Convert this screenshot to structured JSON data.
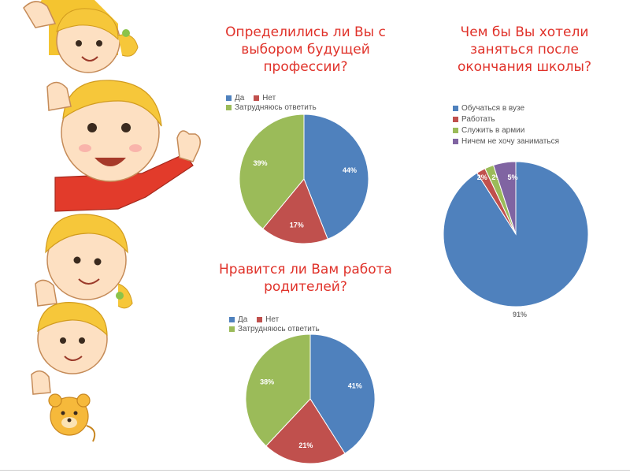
{
  "colors": {
    "blue": "#4f81bd",
    "red": "#c0504d",
    "green": "#9bbb59",
    "purple": "#8064a2",
    "title_red": "#e0322a"
  },
  "chart_data": [
    {
      "type": "pie",
      "title": "Определились ли Вы с выбором будущей профессии?",
      "legend_position": "top",
      "series": [
        {
          "name": "",
          "labels": [
            "Да",
            "Нет",
            "Затрудняюсь ответить"
          ],
          "values": [
            44,
            17,
            39
          ]
        }
      ],
      "data_labels": [
        "44%",
        "17%",
        "39%"
      ]
    },
    {
      "type": "pie",
      "title": "Чем бы Вы хотели заняться после окончания школы?",
      "legend_position": "top-left",
      "series": [
        {
          "name": "",
          "labels": [
            "Обучаться в вузе",
            "Работать",
            "Служить в армии",
            "Ничем не хочу заниматься"
          ],
          "values": [
            91,
            2,
            2,
            5
          ]
        }
      ],
      "data_labels": [
        "91%",
        "2%",
        "2%",
        "5%"
      ]
    },
    {
      "type": "pie",
      "title": "Нравится ли Вам работа родителей?",
      "legend_position": "top",
      "series": [
        {
          "name": "",
          "labels": [
            "Да",
            "Нет",
            "Затрудняюсь ответить"
          ],
          "values": [
            41,
            21,
            38
          ]
        }
      ],
      "data_labels": [
        "41%",
        "21%",
        "38%"
      ]
    }
  ]
}
